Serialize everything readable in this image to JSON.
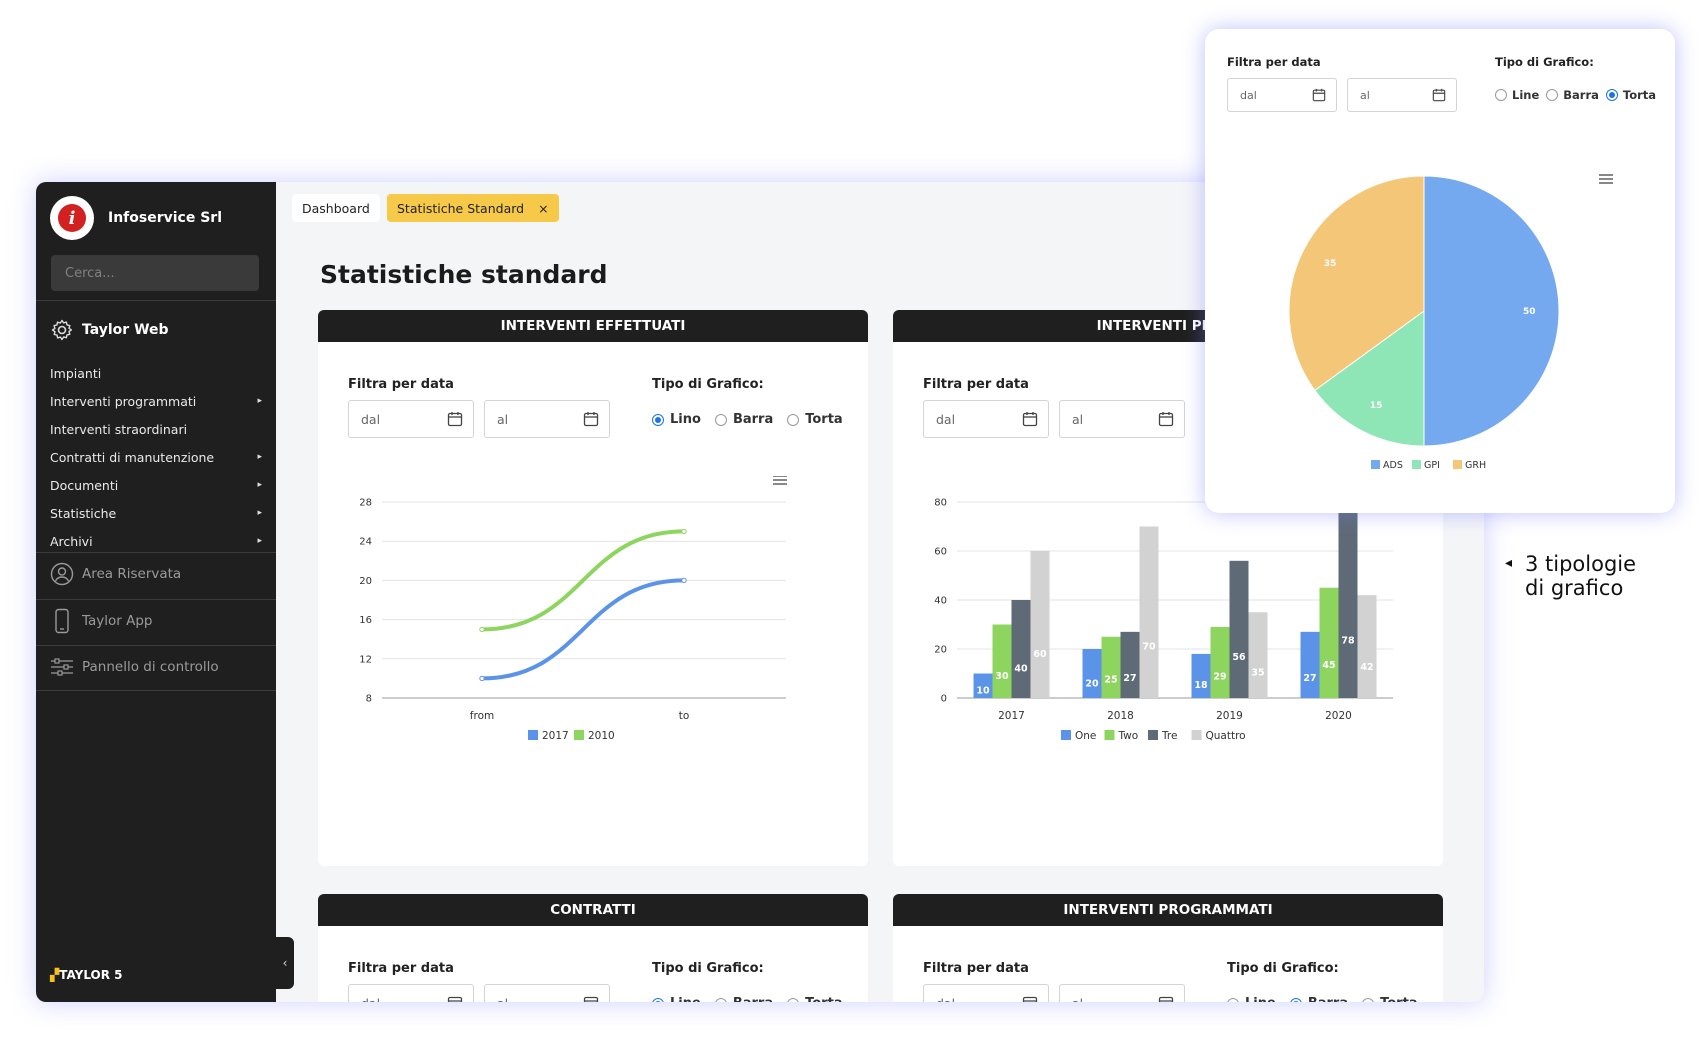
{
  "sidebar": {
    "org_name": "Infoservice Srl",
    "logo_letter": "i",
    "search_placeholder": "Cerca...",
    "section_title": "Taylor Web",
    "items": [
      {
        "label": "Impianti",
        "arrow": ""
      },
      {
        "label": "Interventi programmati",
        "arrow": "▸"
      },
      {
        "label": "Interventi straordinari",
        "arrow": ""
      },
      {
        "label": "Contratti di manutenzione",
        "arrow": "▸"
      },
      {
        "label": "Documenti",
        "arrow": "▸"
      },
      {
        "label": "Statistiche",
        "arrow": "▸"
      },
      {
        "label": "Archivi",
        "arrow": "▸"
      }
    ],
    "area_riservata": "Area Riservata",
    "taylor_app": "Taylor App",
    "pannello": "Pannello di controllo",
    "brand_prefix": "▞",
    "brand": "TAYLOR 5",
    "collapse_icon": "‹"
  },
  "tabs": {
    "dashboard": "Dashboard",
    "active": "Statistiche Standard",
    "close": "×"
  },
  "page_title": "Statistiche standard",
  "cards": {
    "c1_title": "INTERVENTI EFFETTUATI",
    "c2_title": "INTERVENTI PREFA",
    "c3_title": "CONTRATTI",
    "c4_title": "INTERVENTI PROGRAMMATI"
  },
  "filters": {
    "filter_label": "Filtra per data",
    "type_label": "Tipo di Grafico:",
    "dal": "dal",
    "al": "al",
    "opt_line_c1": "Lino",
    "opt_line": "Line",
    "opt_bar": "Barra",
    "opt_pie": "Torta"
  },
  "menu_icon": "≡",
  "annotation": {
    "arrow": "◂",
    "line1": "3 tipologie",
    "line2": "di grafico"
  },
  "colors": {
    "blue": "#5b93e8",
    "green": "#8ed55f",
    "slate": "#5e6b76",
    "grey": "#d2d2d2",
    "pie_blue": "#74a9ef",
    "pie_green": "#8ee5b5",
    "pie_orange": "#f4c678"
  },
  "chart_data": [
    {
      "type": "line",
      "x": [
        "from",
        "to"
      ],
      "series": [
        {
          "name": "2017",
          "values": [
            10,
            20
          ]
        },
        {
          "name": "2010",
          "values": [
            15,
            25
          ]
        }
      ],
      "ylim": [
        8,
        28
      ],
      "yticks": [
        "28",
        "24",
        "20",
        "16",
        "12",
        "8"
      ],
      "grid": true,
      "legend": "bottom"
    },
    {
      "type": "bar",
      "categories": [
        "2017",
        "2018",
        "2019",
        "2020"
      ],
      "series": [
        {
          "name": "One",
          "values": [
            10,
            20,
            18,
            27
          ]
        },
        {
          "name": "Two",
          "values": [
            30,
            25,
            29,
            45
          ]
        },
        {
          "name": "Tre",
          "values": [
            40,
            27,
            56,
            78
          ]
        },
        {
          "name": "Quattro",
          "values": [
            60,
            70,
            35,
            42
          ]
        }
      ],
      "ylim": [
        0,
        80
      ],
      "yticks": [
        "80",
        "60",
        "40",
        "20",
        "0"
      ],
      "grid": true,
      "legend": "bottom"
    },
    {
      "type": "pie",
      "series": [
        {
          "name": "ADS",
          "value": 50
        },
        {
          "name": "GPI",
          "value": 15
        },
        {
          "name": "GRH",
          "value": 35
        }
      ],
      "legend": "bottom"
    }
  ]
}
